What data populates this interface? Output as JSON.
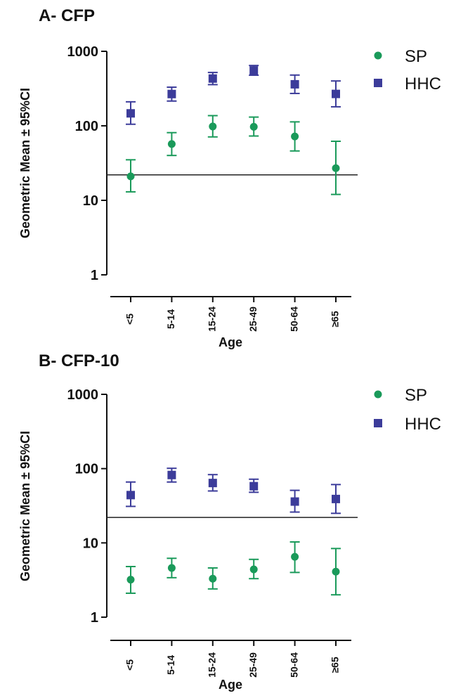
{
  "colors": {
    "sp": "#1a9a5a",
    "hhc": "#3c3c9a",
    "axis": "#111111"
  },
  "legend_labels": {
    "sp": "SP",
    "hhc": "HHC"
  },
  "chart_data": [
    {
      "type": "scatter",
      "panel_title": "A- CFP",
      "xlabel": "Age",
      "ylabel": "Geometric Mean  ±  95%CI",
      "yscale": "log",
      "ylim": [
        1,
        1000
      ],
      "y_ticks": [
        "1",
        "10",
        "100",
        "1000"
      ],
      "categories": [
        "<5",
        "5-14",
        "15-24",
        "25-49",
        "50-64",
        "≥65"
      ],
      "reference_line": 22,
      "legend_position": "top-right",
      "series": [
        {
          "name": "SP",
          "marker": "circle",
          "values": [
            21,
            57,
            98,
            97,
            72,
            27
          ],
          "ci_low": [
            13,
            40,
            71,
            73,
            46,
            12
          ],
          "ci_high": [
            35,
            81,
            137,
            131,
            113,
            62
          ]
        },
        {
          "name": "HHC",
          "marker": "square",
          "values": [
            147,
            267,
            431,
            555,
            361,
            268
          ],
          "ci_low": [
            105,
            215,
            357,
            478,
            272,
            180
          ],
          "ci_high": [
            210,
            330,
            520,
            645,
            480,
            400
          ]
        }
      ]
    },
    {
      "type": "scatter",
      "panel_title": "B- CFP-10",
      "xlabel": "Age",
      "ylabel": "Geometric Mean  ±  95%CI",
      "yscale": "log",
      "ylim": [
        1,
        1000
      ],
      "y_ticks": [
        "1",
        "10",
        "100",
        "1000"
      ],
      "categories": [
        "<5",
        "5-14",
        "15-24",
        "25-49",
        "50-64",
        "≥65"
      ],
      "reference_line": 22,
      "legend_position": "top-right",
      "series": [
        {
          "name": "SP",
          "marker": "circle",
          "values": [
            3.2,
            4.6,
            3.3,
            4.4,
            6.5,
            4.1
          ],
          "ci_low": [
            2.1,
            3.4,
            2.4,
            3.3,
            4.0,
            2.0
          ],
          "ci_high": [
            4.8,
            6.2,
            4.6,
            6.0,
            10.3,
            8.4
          ]
        },
        {
          "name": "HHC",
          "marker": "square",
          "values": [
            44,
            82,
            64,
            58,
            36,
            39
          ],
          "ci_low": [
            31,
            66,
            50,
            48,
            26,
            25
          ],
          "ci_high": [
            66,
            101,
            83,
            72,
            51,
            61
          ]
        }
      ]
    }
  ]
}
